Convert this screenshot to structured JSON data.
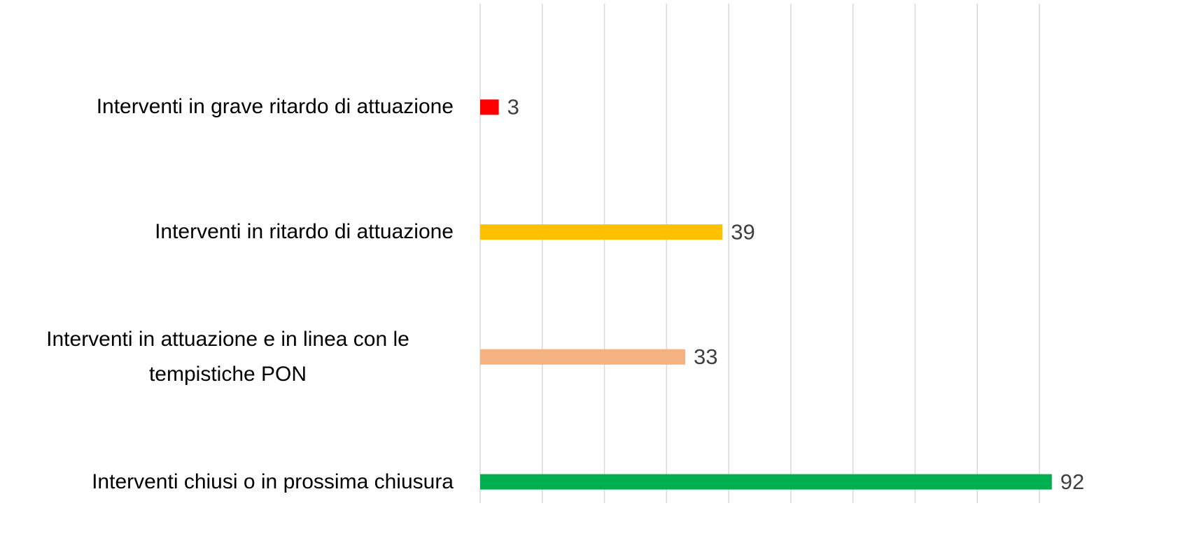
{
  "chart_data": {
    "type": "hbar",
    "categories": [
      "Interventi in grave ritardo di attuazione",
      "Interventi in ritardo di attuazione",
      "Interventi in attuazione e in linea con le tempistiche PON",
      "Interventi chiusi o in prossima chiusura"
    ],
    "values": [
      3,
      39,
      33,
      92
    ],
    "colors": [
      "#ff0000",
      "#ffc000",
      "#f4b183",
      "#00b050"
    ],
    "xlim": [
      0,
      90
    ],
    "xticks": [
      0,
      10,
      20,
      30,
      40,
      50,
      60,
      70,
      80,
      90
    ],
    "grid": true,
    "show_tick_labels": false
  }
}
